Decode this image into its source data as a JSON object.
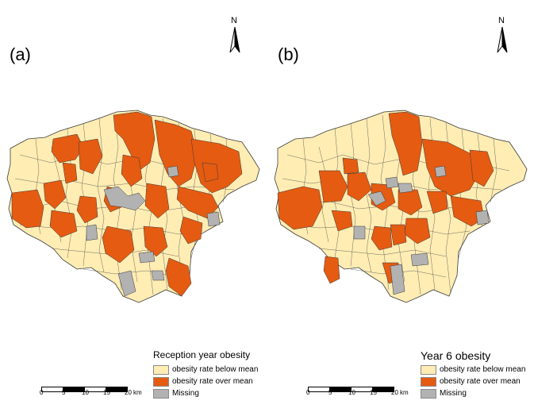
{
  "panels": [
    {
      "label": "(a)",
      "north": "N",
      "legend": {
        "title": "Reception year obesity",
        "items": [
          {
            "label": "obesity rate below mean",
            "color": "#ffedb3"
          },
          {
            "label": "obesity rate over mean",
            "color": "#e55b11"
          },
          {
            "label": "Missing",
            "color": "#b2b2b2"
          }
        ]
      },
      "scale": {
        "ticks": [
          "0",
          "5",
          "10",
          "15",
          "20"
        ],
        "unit": "km"
      }
    },
    {
      "label": "(b)",
      "north": "N",
      "legend": {
        "title": "Year 6 obesity",
        "items": [
          {
            "label": "obesity rate below mean",
            "color": "#ffedb3"
          },
          {
            "label": "obesity rate over mean",
            "color": "#e55b11"
          },
          {
            "label": "Missing",
            "color": "#b2b2b2"
          }
        ]
      },
      "scale": {
        "ticks": [
          "0",
          "5",
          "10",
          "15",
          "20"
        ],
        "unit": "km"
      }
    }
  ],
  "colors": {
    "below": "#ffedb3",
    "over": "#e55b11",
    "missing": "#b2b2b2",
    "border": "#3a3a3a"
  }
}
